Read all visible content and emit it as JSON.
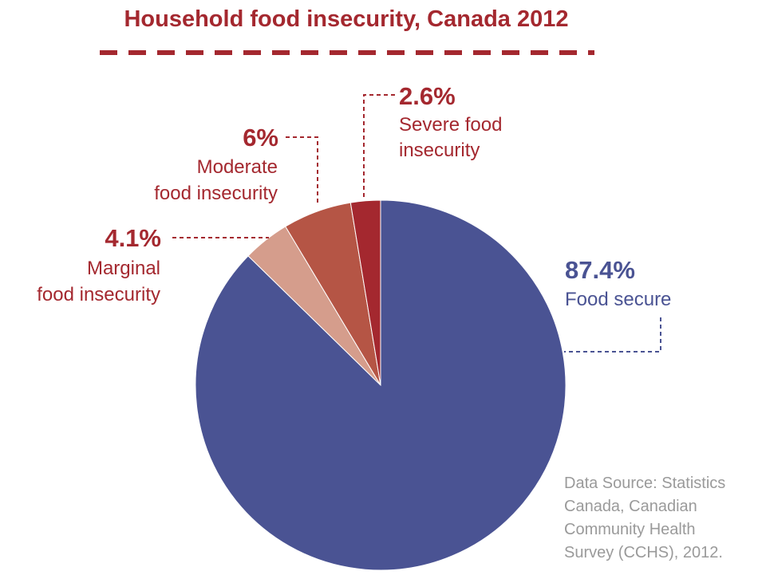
{
  "chart_data": {
    "type": "pie",
    "title": "Household food insecurity, Canada 2012",
    "slices": [
      {
        "label": "Food secure",
        "value": 87.4,
        "value_label": "87.4%",
        "label_lines": [
          "Food secure"
        ],
        "color": "#4a5393"
      },
      {
        "label": "Marginal food insecurity",
        "value": 4.1,
        "value_label": "4.1%",
        "label_lines": [
          "Marginal",
          "food insecurity"
        ],
        "color": "#d59d8c"
      },
      {
        "label": "Moderate food insecurity",
        "value": 6,
        "value_label": "6%",
        "label_lines": [
          "Moderate",
          "food insecurity"
        ],
        "color": "#b55545"
      },
      {
        "label": "Severe food insecurity",
        "value": 2.6,
        "value_label": "2.6%",
        "label_lines": [
          "Severe food",
          "insecurity"
        ],
        "color": "#a4282f"
      }
    ],
    "source_lines": [
      "Data Source: Statistics",
      "Canada, Canadian",
      "Community Health",
      "Survey (CCHS), 2012."
    ]
  },
  "colors": {
    "title": "#a4282f",
    "insecure_text": "#a4282f",
    "secure_text": "#4a5393",
    "source_text": "#9a9a9a"
  }
}
